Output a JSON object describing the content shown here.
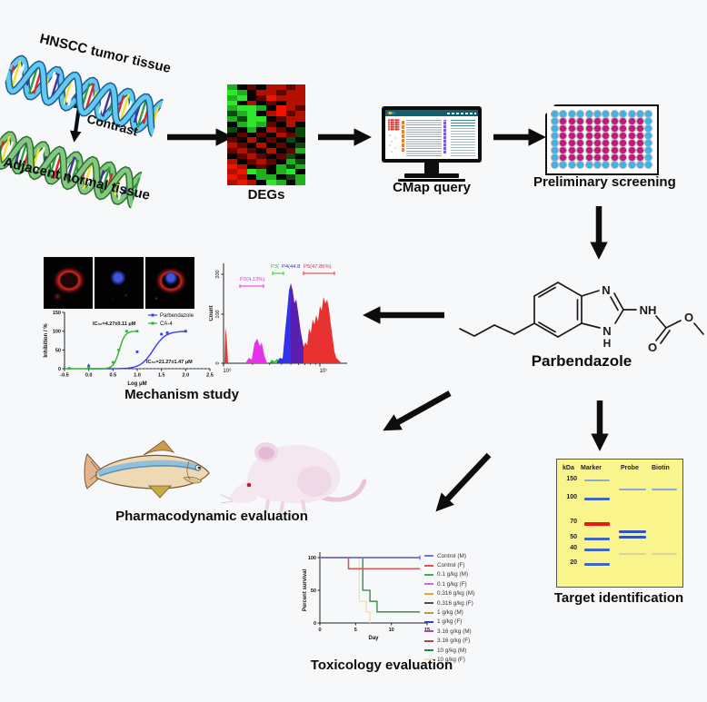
{
  "workflow": {
    "tumor_label": "HNSCC tumor tissue",
    "contrast_label": "Contrast",
    "normal_label": "Adjacent normal tissue",
    "degs_label": "DEGs",
    "cmap_label": "CMap query",
    "screening_label": "Preliminary screening",
    "compound_label": "Parbendazole",
    "mechanism_label": "Mechanism study",
    "pharmacodynamic_label": "Pharmacodynamic evaluation",
    "target_label": "Target identification",
    "toxicology_label": "Toxicology evaluation"
  },
  "molecule": {
    "n_top": "N",
    "n_bottom": "N",
    "h_bottom": "H",
    "nh": "NH",
    "o_carbonyl": "O",
    "o_ester": "O"
  },
  "heatmap": {
    "palette": {
      "G": "#2ee62e",
      "g": "#1faf1f",
      "e": "#0c4a0c",
      "k": "#050505",
      "d": "#5e0500",
      "r": "#b31000",
      "R": "#ee1500"
    },
    "rows": [
      "gkdkrrdr",
      "Ggkrrdrr",
      "gGkdRrrr",
      "Gkrkdkrr",
      "gGGgkRrd",
      "egGkrRdr",
      "geGGkdrr",
      "kgGgdkrk",
      "ekgkrdke",
      "kdkdkrde",
      "dkrkdkek",
      "rdkrkdke",
      "drdkrkdg",
      "kdrdkdek",
      "rkdrdkge",
      "Rrkdkgeg",
      "rRGgkgGk",
      "Rrkggkeg",
      "rRrkGgkg"
    ]
  },
  "plate": {
    "rows": 8,
    "cols": 12,
    "edge_color": "#3fb3e6",
    "inner_color": "#c2187c"
  },
  "gel": {
    "unit_label": "kDa",
    "lane_labels": [
      "Marker",
      "Probe",
      "Biotin"
    ],
    "ladder": [
      {
        "label": "150",
        "y": 0.155
      },
      {
        "label": "100",
        "y": 0.3
      },
      {
        "label": "70",
        "y": 0.49
      },
      {
        "label": "50",
        "y": 0.615
      },
      {
        "label": "40",
        "y": 0.7
      },
      {
        "label": "20",
        "y": 0.815
      }
    ],
    "bands": [
      {
        "lane": 0,
        "y": 0.155,
        "color": "#8fa8d8",
        "h": 2
      },
      {
        "lane": 0,
        "y": 0.3,
        "color": "#3a66c4",
        "h": 3
      },
      {
        "lane": 0,
        "y": 0.49,
        "color": "#ee1515",
        "h": 4
      },
      {
        "lane": 0,
        "y": 0.615,
        "color": "#3a66c4",
        "h": 3
      },
      {
        "lane": 0,
        "y": 0.7,
        "color": "#3a66c4",
        "h": 3
      },
      {
        "lane": 0,
        "y": 0.815,
        "color": "#3a66c4",
        "h": 3
      },
      {
        "lane": 1,
        "y": 0.225,
        "color": "#8fa8d8",
        "h": 2
      },
      {
        "lane": 1,
        "y": 0.558,
        "color": "#2a55c0",
        "h": 3
      },
      {
        "lane": 1,
        "y": 0.6,
        "color": "#2a55c0",
        "h": 3
      },
      {
        "lane": 1,
        "y": 0.735,
        "color": "#d8d4a0",
        "h": 2
      },
      {
        "lane": 2,
        "y": 0.225,
        "color": "#8fa8d8",
        "h": 2
      },
      {
        "lane": 2,
        "y": 0.735,
        "color": "#d8d4a0",
        "h": 2
      }
    ]
  },
  "chart_data": [
    {
      "id": "dose_response",
      "type": "line",
      "ylabel": "Inhibition / %",
      "xlabel": "Log μM",
      "yticks": [
        0,
        50,
        100,
        150
      ],
      "xticks": [
        "-0.5",
        "0.0",
        "0.5",
        "1.0",
        "1.5",
        "2.0",
        "2.5"
      ],
      "xlim": [
        -0.5,
        2.5
      ],
      "ylim": [
        0,
        150
      ],
      "legend_position": "top-right",
      "series": [
        {
          "name": "Parbendazole",
          "color": "#3a3af0",
          "logIC50": 1.33,
          "hill": 3.4,
          "curve_range": [
            -0.05,
            2.05
          ],
          "markers": [
            [
              0,
              7
            ],
            [
              1.0,
              45
            ],
            [
              1.5,
              92
            ],
            [
              1.62,
              96
            ],
            [
              2.0,
              100
            ]
          ],
          "annotation": "IC₅₀=21.27±1.47 μM"
        },
        {
          "name": "CA-4",
          "color": "#2db82d",
          "logIC50": 0.63,
          "hill": 7.5,
          "curve_range": [
            -0.45,
            1.05
          ],
          "markers": [
            [
              -0.4,
              1
            ],
            [
              0.0,
              3
            ],
            [
              0.5,
              17
            ],
            [
              0.62,
              50
            ],
            [
              0.78,
              100
            ],
            [
              1.0,
              100
            ]
          ],
          "annotation": "IC₅₀=4.27±0.11 μM"
        }
      ]
    },
    {
      "id": "flow_cytometry",
      "type": "histogram",
      "ylabel": "Count",
      "yticks": [
        0,
        100,
        200
      ],
      "xticks": [
        "10⁶",
        "10⁷"
      ],
      "gates": [
        {
          "label": "P2(4.13%)",
          "color": "#e832e8"
        },
        {
          "label": "P3(",
          "color": "#28c828"
        },
        {
          "label": "P4(44.8",
          "color": "#3232e8"
        },
        {
          "label": "P5(47.86%)",
          "color": "#e83232"
        }
      ],
      "peak_colors": {
        "debris": "#e832e8",
        "mid": "#3232e8",
        "overlap": "#5a1fb0",
        "high": "#e83232"
      }
    },
    {
      "id": "survival",
      "type": "line",
      "ylabel": "Percent survival",
      "xlabel": "Day",
      "yticks": [
        0,
        50,
        100
      ],
      "xticks": [
        0,
        5,
        10,
        15
      ],
      "xlim": [
        0,
        15
      ],
      "ylim": [
        0,
        100
      ],
      "legend_position": "right",
      "series": [
        {
          "name": "Control (M)",
          "color": "#7070e8",
          "points": [
            [
              0,
              100
            ],
            [
              14,
              100
            ]
          ]
        },
        {
          "name": "Control (F)",
          "color": "#e05050",
          "points": [
            [
              0,
              100
            ],
            [
              4,
              100
            ],
            [
              4,
              83
            ],
            [
              14,
              83
            ]
          ]
        },
        {
          "name": "0.1 g/kg (M)",
          "color": "#3cb93c",
          "points": [
            [
              0,
              100
            ],
            [
              14,
              100
            ]
          ]
        },
        {
          "name": "0.1 g/kg (F)",
          "color": "#d06fd0",
          "points": [
            [
              0,
              100
            ],
            [
              14,
              100
            ]
          ]
        },
        {
          "name": "0.316 g/kg (M)",
          "color": "#f0a03c",
          "points": [
            [
              0,
              100
            ],
            [
              14,
              100
            ]
          ]
        },
        {
          "name": "0.316 g/kg (F)",
          "color": "#505050",
          "points": [
            [
              0,
              100
            ],
            [
              14,
              100
            ]
          ]
        },
        {
          "name": "1 g/kg (M)",
          "color": "#c09850",
          "points": [
            [
              0,
              100
            ],
            [
              14,
              100
            ]
          ]
        },
        {
          "name": "1 g/kg (F)",
          "color": "#3c3cb9",
          "points": [
            [
              0,
              100
            ],
            [
              14,
              100
            ]
          ]
        },
        {
          "name": "3.16 g/kg (M)",
          "color": "#a050a0",
          "points": [
            [
              0,
              100
            ],
            [
              14,
              100
            ]
          ]
        },
        {
          "name": "3.16 g/kg (F)",
          "color": "#b94545",
          "points": [
            [
              0,
              100
            ],
            [
              4,
              100
            ],
            [
              4,
              83
            ],
            [
              14,
              83
            ]
          ]
        },
        {
          "name": "10 g/kg (M)",
          "color": "#2f8040",
          "points": [
            [
              0,
              100
            ],
            [
              6,
              100
            ],
            [
              6,
              50
            ],
            [
              7,
              50
            ],
            [
              7,
              33
            ],
            [
              8,
              33
            ],
            [
              8,
              17
            ],
            [
              14,
              17
            ]
          ]
        },
        {
          "name": "10 g/kg (F)",
          "color": "#f4ddb0",
          "points": [
            [
              0,
              100
            ],
            [
              5.5,
              100
            ],
            [
              5.5,
              33
            ],
            [
              6.5,
              33
            ],
            [
              6.5,
              17
            ],
            [
              7,
              17
            ],
            [
              7,
              0
            ]
          ]
        }
      ]
    }
  ]
}
